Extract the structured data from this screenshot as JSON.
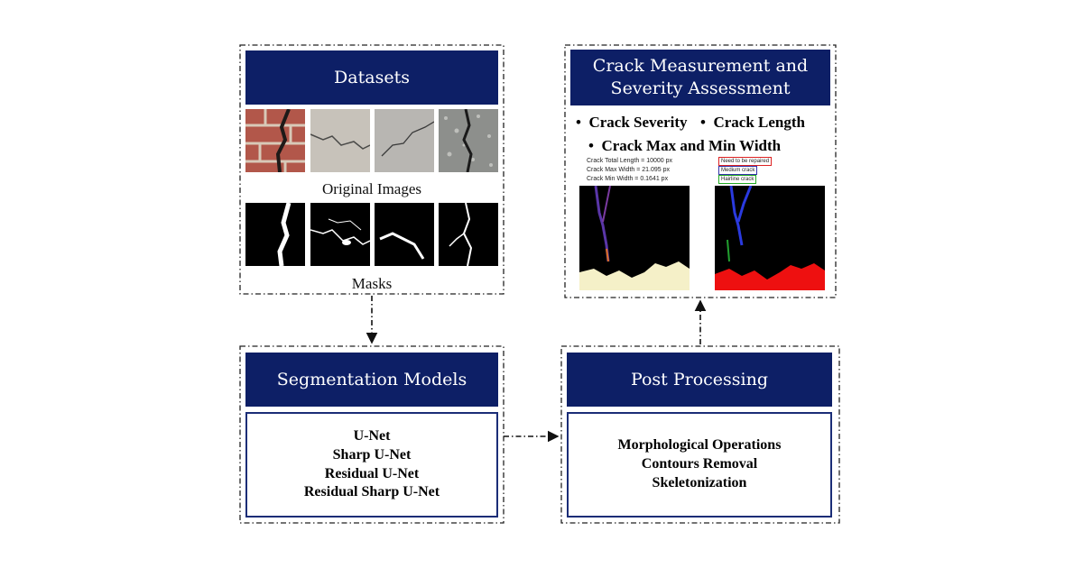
{
  "datasets": {
    "title": "Datasets",
    "original_images_caption": "Original Images",
    "masks_caption": "Masks"
  },
  "measurement": {
    "title_line1": "Crack Measurement and",
    "title_line2": "Severity Assessment",
    "bullet1": "Crack Severity",
    "bullet2": "Crack Length",
    "bullet3": "Crack Max and Min Width",
    "stats": [
      "Crack Total Length = 10000 px",
      "Crack Max Width = 21.095 px",
      "Crack Min Width = 0.1641 px"
    ],
    "legend": [
      {
        "label": "Need to be repaired",
        "color": "#d22"
      },
      {
        "label": "Medium crack",
        "color": "#33a"
      },
      {
        "label": "Hairline crack",
        "color": "#2a2"
      }
    ]
  },
  "segmentation": {
    "title": "Segmentation Models",
    "models": [
      "U-Net",
      "Sharp U-Net",
      "Residual U-Net",
      "Residual Sharp U-Net"
    ]
  },
  "postprocessing": {
    "title": "Post Processing",
    "steps": [
      "Morphological Operations",
      "Contours Removal",
      "Skeletonization"
    ]
  }
}
